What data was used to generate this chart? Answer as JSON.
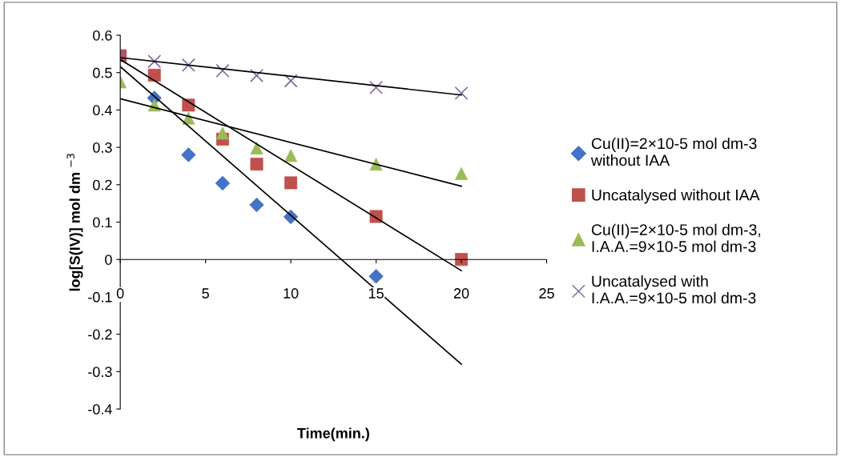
{
  "chart_data": {
    "type": "scatter",
    "xlabel": "Time(min.)",
    "ylabel": "log[S(IV)] mol dm $^{−3}$",
    "xlim": [
      0,
      25
    ],
    "ylim": [
      -0.4,
      0.6
    ],
    "xticks": [
      0,
      5,
      10,
      15,
      20,
      25
    ],
    "yticks": [
      -0.4,
      -0.3,
      -0.2,
      -0.1,
      0,
      0.1,
      0.2,
      0.3,
      0.4,
      0.5,
      0.6
    ],
    "grid": false,
    "legend": "right",
    "series": [
      {
        "name": "Cu(II)=2×10-5 mol dm-3\nwithout IAA",
        "color": "#4472c4",
        "marker": "diamond",
        "x": [
          2,
          4,
          6,
          8,
          10,
          15
        ],
        "values": [
          0.432,
          0.28,
          0.204,
          0.146,
          0.114,
          -0.045
        ]
      },
      {
        "name": "Uncatalysed without IAA",
        "color": "#c0504d",
        "marker": "square",
        "x": [
          0,
          2,
          4,
          6,
          8,
          10,
          15,
          20
        ],
        "values": [
          0.545,
          0.493,
          0.413,
          0.322,
          0.255,
          0.205,
          0.115,
          0.0
        ]
      },
      {
        "name": "Cu(II)=2×10-5 mol dm-3,\nI.A.A.=9×10-5 mol dm-3",
        "color": "#9bbb59",
        "marker": "triangle",
        "x": [
          0,
          2,
          4,
          6,
          8,
          10,
          15,
          20
        ],
        "values": [
          0.475,
          0.413,
          0.378,
          0.338,
          0.298,
          0.278,
          0.255,
          0.23
        ]
      },
      {
        "name": "Uncatalysed with\nI.A.A.=9×10-5 mol dm-3",
        "color": "#8064a2",
        "marker": "cross",
        "x": [
          0,
          2,
          4,
          6,
          8,
          10,
          15,
          20
        ],
        "values": [
          0.54,
          0.53,
          0.52,
          0.505,
          0.492,
          0.478,
          0.46,
          0.445
        ]
      },
      {
        "type": "line",
        "color": "#000000",
        "x": [
          0,
          20
        ],
        "values": [
          0.516,
          -0.28
        ]
      },
      {
        "type": "line",
        "color": "#000000",
        "x": [
          0,
          20
        ],
        "values": [
          0.535,
          -0.03
        ]
      },
      {
        "type": "line",
        "color": "#000000",
        "x": [
          0,
          20
        ],
        "values": [
          0.43,
          0.196
        ]
      },
      {
        "type": "line",
        "color": "#000000",
        "x": [
          0,
          20
        ],
        "values": [
          0.54,
          0.44
        ]
      }
    ]
  }
}
